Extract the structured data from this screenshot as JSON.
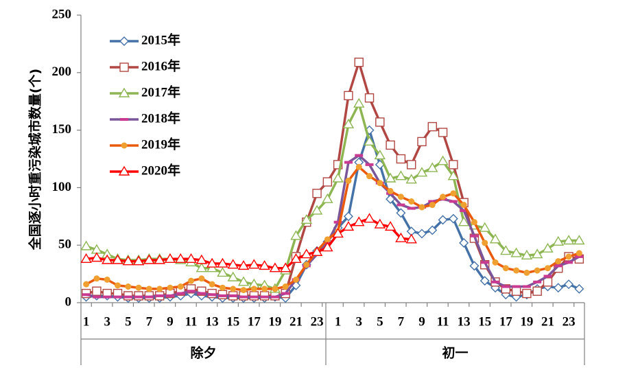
{
  "chart_data": {
    "type": "line",
    "title": "",
    "ylabel": "全国逐小时重污染城市数量(个)",
    "xlabel": "",
    "ylim": [
      0,
      250
    ],
    "yticks": [
      0,
      50,
      100,
      150,
      200,
      250
    ],
    "x_tick_labels": [
      "1",
      "3",
      "5",
      "7",
      "9",
      "11",
      "13",
      "15",
      "17",
      "19",
      "21",
      "23",
      "1",
      "3",
      "5",
      "7",
      "9",
      "11",
      "13",
      "15",
      "17",
      "19",
      "21",
      "23"
    ],
    "groups": [
      "除夕",
      "初一"
    ],
    "legend_position": "top-left",
    "grid": false,
    "series": [
      {
        "name": "2015年",
        "color": "#4472a8",
        "marker": "diamond",
        "values": [
          5,
          6,
          6,
          5,
          4,
          4,
          4,
          4,
          5,
          6,
          8,
          6,
          5,
          4,
          4,
          4,
          4,
          4,
          5,
          4,
          15,
          33,
          45,
          53,
          65,
          75,
          122,
          150,
          120,
          90,
          78,
          62,
          60,
          63,
          72,
          73,
          52,
          32,
          19,
          13,
          7,
          5,
          7,
          12,
          14,
          13,
          16,
          12
        ]
      },
      {
        "name": "2016年",
        "color": "#b14743",
        "marker": "square",
        "values": [
          8,
          10,
          8,
          8,
          6,
          6,
          6,
          6,
          8,
          10,
          12,
          10,
          8,
          7,
          6,
          6,
          6,
          6,
          6,
          8,
          40,
          70,
          95,
          105,
          120,
          180,
          209,
          178,
          157,
          137,
          125,
          120,
          140,
          153,
          148,
          120,
          87,
          56,
          33,
          18,
          12,
          10,
          8,
          10,
          18,
          30,
          40,
          38
        ]
      },
      {
        "name": "2017年",
        "color": "#8db652",
        "marker": "triangle",
        "values": [
          49,
          46,
          42,
          38,
          37,
          37,
          38,
          38,
          38,
          37,
          35,
          30,
          30,
          26,
          22,
          18,
          16,
          15,
          12,
          28,
          58,
          72,
          80,
          90,
          108,
          155,
          173,
          140,
          128,
          108,
          110,
          107,
          113,
          117,
          123,
          110,
          70,
          67,
          65,
          55,
          45,
          43,
          41,
          42,
          47,
          53,
          54,
          54
        ]
      },
      {
        "name": "2018年",
        "color": "#7a559a",
        "marker": "dash",
        "values": [
          7,
          5,
          5,
          5,
          5,
          5,
          5,
          6,
          6,
          8,
          10,
          8,
          7,
          6,
          6,
          5,
          5,
          5,
          5,
          8,
          20,
          32,
          42,
          52,
          70,
          122,
          128,
          120,
          104,
          95,
          85,
          82,
          83,
          88,
          90,
          88,
          80,
          58,
          35,
          18,
          14,
          14,
          14,
          18,
          23,
          32,
          35,
          40
        ]
      },
      {
        "name": "2019年",
        "color": "#ea5a0d",
        "marker": "circle",
        "values": [
          16,
          21,
          20,
          15,
          14,
          13,
          12,
          12,
          13,
          14,
          19,
          21,
          16,
          13,
          12,
          11,
          12,
          12,
          12,
          14,
          20,
          33,
          45,
          55,
          62,
          106,
          118,
          110,
          104,
          97,
          92,
          88,
          83,
          85,
          92,
          95,
          85,
          70,
          52,
          35,
          30,
          28,
          26,
          28,
          30,
          36,
          40,
          43
        ]
      },
      {
        "name": "2020年",
        "color": "#ff0000",
        "marker": "triangle",
        "values": [
          38,
          39,
          37,
          37,
          36,
          36,
          37,
          37,
          38,
          38,
          38,
          37,
          34,
          34,
          33,
          32,
          33,
          32,
          30,
          30,
          38,
          42,
          44,
          48,
          60,
          66,
          70,
          73,
          68,
          66,
          56,
          55
        ]
      }
    ]
  }
}
